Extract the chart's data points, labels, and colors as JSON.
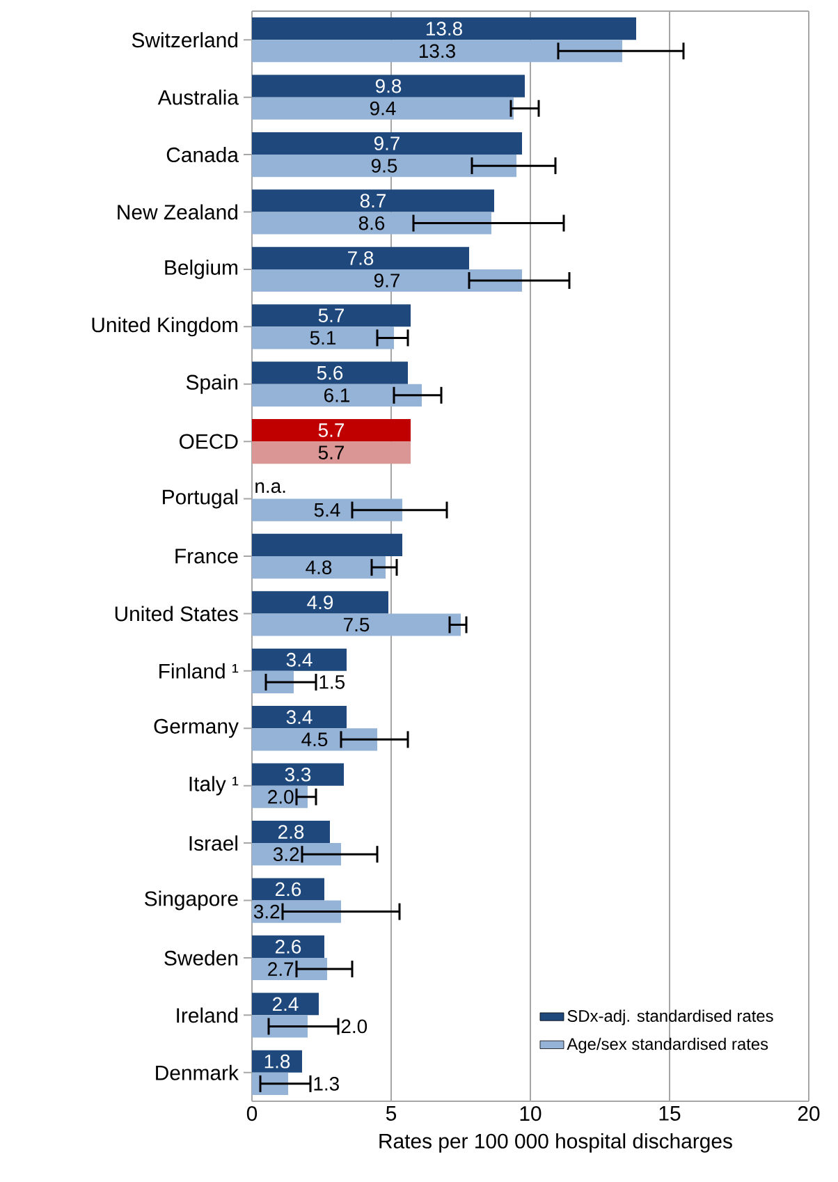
{
  "chart_data": {
    "type": "bar",
    "orientation": "horizontal",
    "xlabel": "Rates per 100 000 hospital discharges",
    "categories": [
      "Switzerland",
      "Australia",
      "Canada",
      "New Zealand",
      "Belgium",
      "United Kingdom",
      "Spain",
      "OECD",
      "Portugal",
      "France",
      "United States",
      "Finland ¹",
      "Germany",
      "Italy ¹",
      "Israel",
      "Singapore",
      "Sweden",
      "Ireland",
      "Denmark"
    ],
    "series": [
      {
        "name": "SDx-adj. standardised rates",
        "color": "#1f497d",
        "colors": [
          "#1f497d",
          "#1f497d",
          "#1f497d",
          "#1f497d",
          "#1f497d",
          "#1f497d",
          "#1f497d",
          "#c00000",
          "#1f497d",
          "#1f497d",
          "#1f497d",
          "#1f497d",
          "#1f497d",
          "#1f497d",
          "#1f497d",
          "#1f497d",
          "#1f497d",
          "#1f497d",
          "#1f497d"
        ],
        "values": [
          13.8,
          9.8,
          9.7,
          8.7,
          7.8,
          5.7,
          5.6,
          5.7,
          null,
          5.4,
          4.9,
          3.4,
          3.4,
          3.3,
          2.8,
          2.6,
          2.6,
          2.4,
          1.8
        ],
        "value_labels": [
          "13.8",
          "9.8",
          "9.7",
          "8.7",
          "7.8",
          "5.7",
          "5.6",
          "5.7",
          "n.a.",
          null,
          "4.9",
          "3.4",
          "3.4",
          "3.3",
          "2.8",
          "2.6",
          "2.6",
          "2.4",
          "1.8"
        ]
      },
      {
        "name": "Age/sex standardised rates",
        "color": "#95b3d7",
        "colors": [
          "#95b3d7",
          "#95b3d7",
          "#95b3d7",
          "#95b3d7",
          "#95b3d7",
          "#95b3d7",
          "#95b3d7",
          "#da9694",
          "#95b3d7",
          "#95b3d7",
          "#95b3d7",
          "#95b3d7",
          "#95b3d7",
          "#95b3d7",
          "#95b3d7",
          "#95b3d7",
          "#95b3d7",
          "#95b3d7",
          "#95b3d7"
        ],
        "values": [
          13.3,
          9.4,
          9.5,
          8.6,
          9.7,
          5.1,
          6.1,
          5.7,
          5.4,
          4.8,
          7.5,
          1.5,
          4.5,
          2.0,
          3.2,
          3.2,
          2.7,
          2.0,
          1.3
        ],
        "value_labels": [
          "13.3",
          "9.4",
          "9.5",
          "8.6",
          "9.7",
          "5.1",
          "6.1",
          "5.7",
          "5.4",
          "4.8",
          "7.5",
          "1.5",
          "4.5",
          "2.0",
          "3.2",
          "3.2",
          "2.7",
          "2.0",
          "1.3"
        ],
        "errors": [
          [
            11.0,
            15.5
          ],
          [
            9.3,
            10.3
          ],
          [
            7.9,
            10.9
          ],
          [
            5.8,
            11.2
          ],
          [
            7.8,
            11.4
          ],
          [
            4.5,
            5.6
          ],
          [
            5.1,
            6.8
          ],
          null,
          [
            3.6,
            7.0
          ],
          [
            4.3,
            5.2
          ],
          [
            7.1,
            7.7
          ],
          [
            0.5,
            2.3
          ],
          [
            3.2,
            5.6
          ],
          [
            1.6,
            2.3
          ],
          [
            1.8,
            4.5
          ],
          [
            1.1,
            5.3
          ],
          [
            1.6,
            3.6
          ],
          [
            0.6,
            3.1
          ],
          [
            0.3,
            2.1
          ]
        ]
      }
    ],
    "xlim": [
      0,
      20
    ],
    "xticks": [
      0,
      5,
      10,
      15,
      20
    ],
    "grid": "x",
    "legend": "bottom right"
  }
}
